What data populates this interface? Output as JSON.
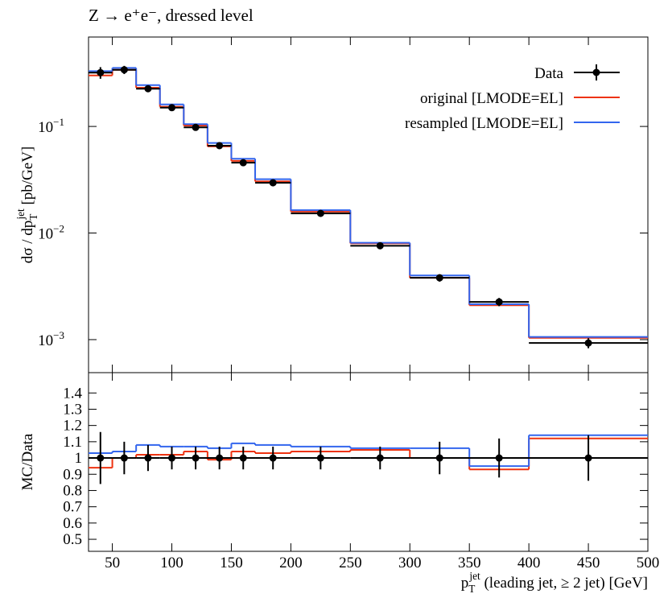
{
  "chart_data": [
    {
      "type": "histogram",
      "title": "Z → e⁺e⁻, dressed level",
      "ylabel": {
        "prefix": "dσ / dp",
        "sub": "T",
        "sup": "jet",
        "suffix": " [pb/GeV]"
      },
      "bins": [
        30,
        50,
        70,
        90,
        110,
        130,
        150,
        170,
        200,
        250,
        300,
        350,
        400,
        500
      ],
      "xlim": [
        30,
        500
      ],
      "xticks": [
        50,
        100,
        150,
        200,
        250,
        300,
        350,
        400,
        450,
        500
      ],
      "ylim": [
        0.00049,
        0.69
      ],
      "log_y": true,
      "yticks": [
        {
          "value": 0.1,
          "label": "10",
          "exponent": "−1"
        },
        {
          "value": 0.01,
          "label": "10",
          "exponent": "−2"
        },
        {
          "value": 0.001,
          "label": "10",
          "exponent": "−3"
        }
      ],
      "legend": "upper right",
      "series": [
        {
          "name": "Data",
          "color": "#000000",
          "values": [
            0.32,
            0.34,
            0.226,
            0.15,
            0.098,
            0.066,
            0.0457,
            0.0296,
            0.0153,
            0.0076,
            0.0038,
            0.00226,
            0.00093
          ],
          "errors": [
            0.04,
            0.03,
            0.01,
            0.008,
            0.005,
            0.003,
            0.002,
            0.0013,
            0.0005,
            0.0003,
            0.0003,
            0.0002,
            0.0001
          ]
        },
        {
          "name": "original [LMODE=EL]",
          "color": "#ee3311",
          "values": [
            0.301,
            0.34,
            0.231,
            0.153,
            0.102,
            0.065,
            0.0475,
            0.0305,
            0.0159,
            0.008,
            0.0038,
            0.0021,
            0.00104
          ]
        },
        {
          "name": "resampled [LMODE=EL]",
          "color": "#3366ee",
          "values": [
            0.33,
            0.354,
            0.244,
            0.161,
            0.105,
            0.07,
            0.0498,
            0.032,
            0.0164,
            0.0081,
            0.004,
            0.00215,
            0.00106
          ]
        }
      ]
    },
    {
      "type": "histogram",
      "ylabel": {
        "prefix": "MC/Data"
      },
      "xlabel": {
        "prefix": "p",
        "sub": "T",
        "sup": "jet",
        "suffix": " (leading jet, ≥ 2 jet) [GeV]"
      },
      "bins": [
        30,
        50,
        70,
        90,
        110,
        130,
        150,
        170,
        200,
        250,
        300,
        350,
        400,
        500
      ],
      "xlim": [
        30,
        500
      ],
      "xticks": [
        50,
        100,
        150,
        200,
        250,
        300,
        350,
        400,
        450,
        500
      ],
      "ylim": [
        0.426,
        1.525
      ],
      "log_y": false,
      "yticks": [
        0.5,
        0.6,
        0.7,
        0.8,
        0.9,
        1,
        1.1,
        1.2,
        1.3,
        1.4
      ],
      "series": [
        {
          "color": "#000000",
          "values": [
            1,
            1,
            1,
            1,
            1,
            1,
            1,
            1,
            1,
            1,
            1,
            1,
            1
          ],
          "errors": [
            0.16,
            0.1,
            0.08,
            0.07,
            0.07,
            0.07,
            0.07,
            0.07,
            0.07,
            0.07,
            0.1,
            0.12,
            0.14
          ]
        },
        {
          "color": "#ee3311",
          "values": [
            0.94,
            1.0,
            1.02,
            1.02,
            1.04,
            0.99,
            1.04,
            1.03,
            1.04,
            1.05,
            1.0,
            0.93,
            1.12
          ]
        },
        {
          "color": "#3366ee",
          "values": [
            1.03,
            1.04,
            1.08,
            1.07,
            1.07,
            1.06,
            1.09,
            1.08,
            1.07,
            1.06,
            1.06,
            0.95,
            1.14
          ]
        }
      ]
    }
  ]
}
